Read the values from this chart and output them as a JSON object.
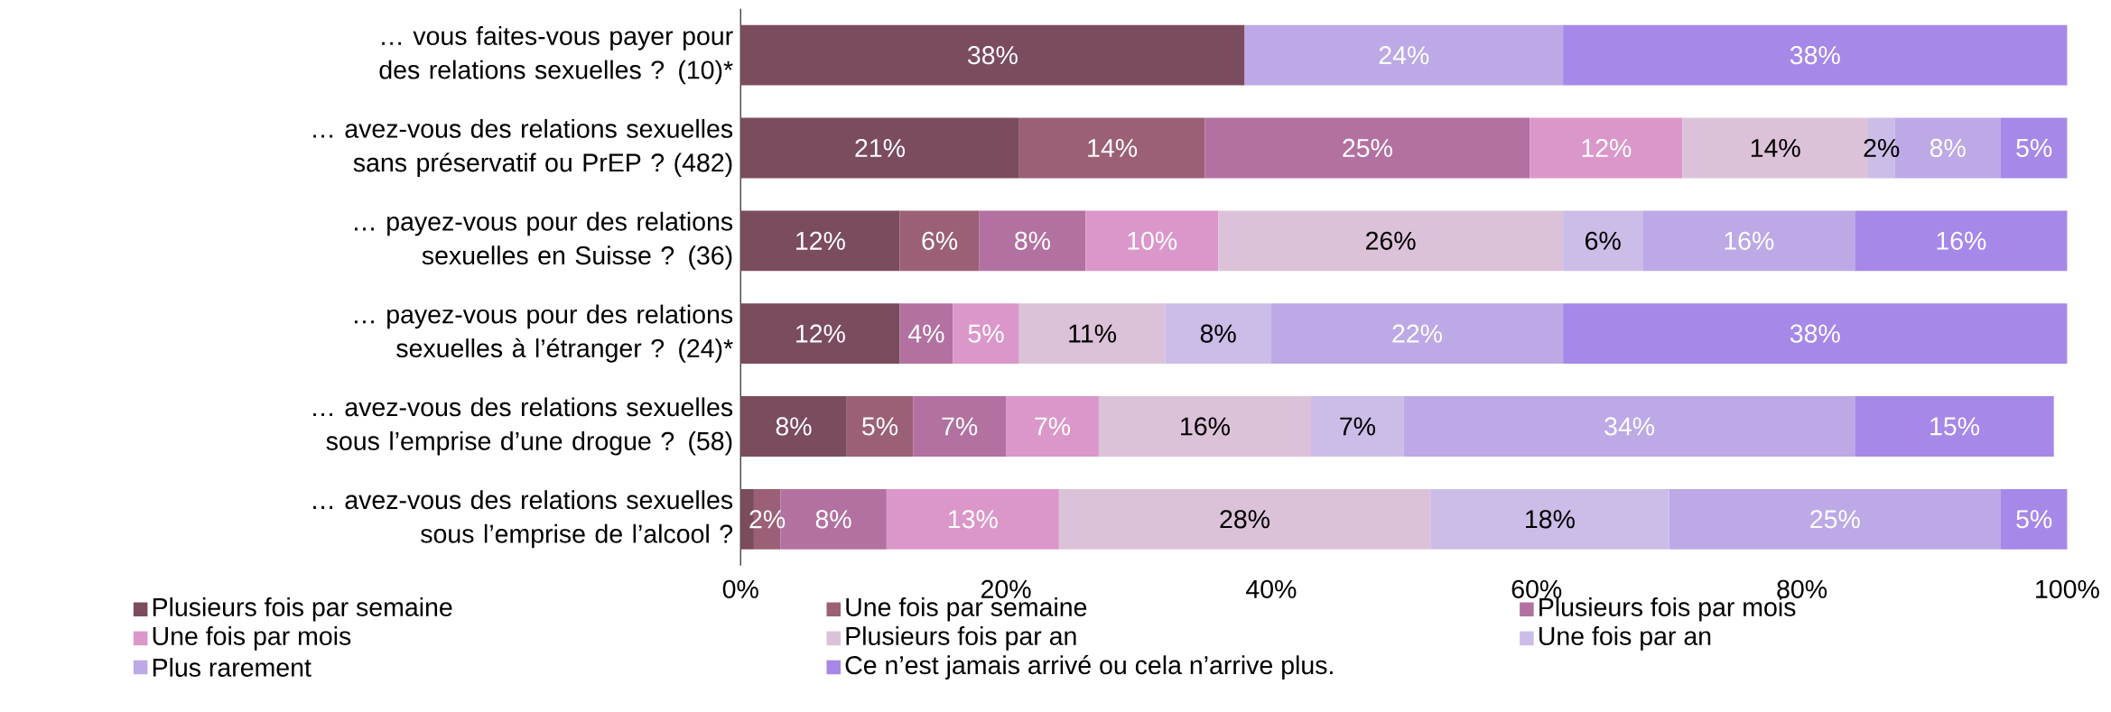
{
  "chart_data": {
    "type": "bar",
    "orientation": "horizontal",
    "stacked": true,
    "categories": [
      "… vous faites-vous payer pour des relations sexuelles ? (10)*",
      "… avez-vous des relations sexuelles sans préservatif ou PrEP ? (482)",
      "… payez-vous pour des relations sexuelles en Suisse ? (36)",
      "… payez-vous pour des relations sexuelles à l’étranger ? (24)*",
      "… avez-vous des relations sexuelles sous l’emprise d’une drogue ? (58)",
      "… avez-vous des relations sexuelles sous l’emprise de l’alcool ?"
    ],
    "series": [
      {
        "name": "Plusieurs fois par semaine",
        "color": "#7b4b5e",
        "values": [
          38,
          21,
          12,
          12,
          8,
          1
        ],
        "value_labels": [
          "38%",
          "21%",
          "12%",
          "12%",
          "8%",
          null
        ]
      },
      {
        "name": "Une fois par semaine",
        "color": "#9b6075",
        "values": [
          null,
          14,
          6,
          null,
          5,
          2
        ],
        "value_labels": [
          null,
          "14%",
          "6%",
          null,
          "5%",
          "2%"
        ]
      },
      {
        "name": "Plusieurs fois par mois",
        "color": "#b271a0",
        "values": [
          null,
          24.5,
          8,
          4,
          7,
          8
        ],
        "value_labels": [
          null,
          "25%",
          "8%",
          "4%",
          "7%",
          "8%"
        ]
      },
      {
        "name": "Une fois par mois",
        "color": "#db97c9",
        "values": [
          null,
          11.5,
          10,
          5,
          7,
          13
        ],
        "value_labels": [
          null,
          "12%",
          "10%",
          "5%",
          "7%",
          "13%"
        ]
      },
      {
        "name": "Plusieurs fois par an",
        "color": "#dcc2d9",
        "values": [
          null,
          14,
          26,
          11,
          16,
          28
        ],
        "value_labels": [
          null,
          "14%",
          "26%",
          "11%",
          "16%",
          "28%"
        ]
      },
      {
        "name": "Une fois par an",
        "color": "#cbbde8",
        "values": [
          null,
          2,
          6,
          8,
          7,
          18
        ],
        "value_labels": [
          null,
          "2%",
          "6%",
          "8%",
          "7%",
          "18%"
        ]
      },
      {
        "name": "Plus rarement",
        "color": "#bca9e6",
        "values": [
          24,
          8,
          16,
          22,
          34,
          25
        ],
        "value_labels": [
          "24%",
          "8%",
          "16%",
          "22%",
          "34%",
          "25%"
        ]
      },
      {
        "name": "Ce n’est jamais arrivé ou cela n’arrive plus.",
        "color": "#a688e8",
        "values": [
          38,
          5,
          16,
          38,
          15,
          5
        ],
        "value_labels": [
          "38%",
          "5%",
          "16%",
          "38%",
          "15%",
          "5%"
        ]
      }
    ],
    "xlim": [
      0,
      100
    ],
    "xticks": [
      {
        "value": 0,
        "label": "0%"
      },
      {
        "value": 20,
        "label": "20%"
      },
      {
        "value": 40,
        "label": "40%"
      },
      {
        "value": 60,
        "label": "60%"
      },
      {
        "value": 80,
        "label": "80%"
      },
      {
        "value": 100,
        "label": "100%"
      }
    ],
    "grid": false,
    "legend": "bottom"
  }
}
